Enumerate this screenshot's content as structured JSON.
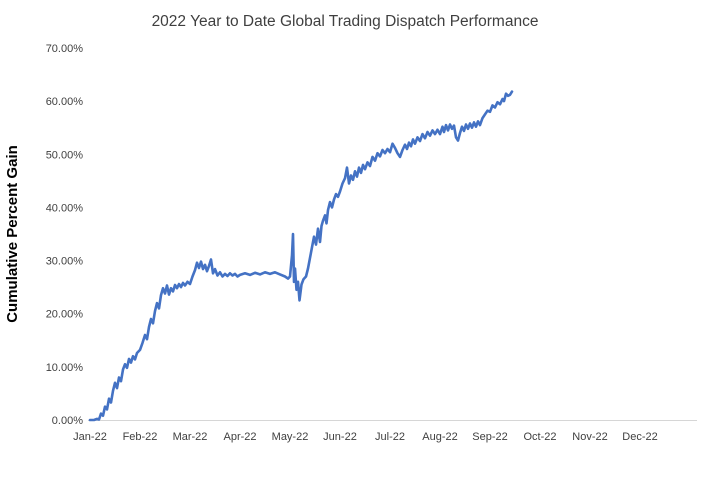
{
  "chart_data": {
    "type": "line",
    "title": "2022 Year to Date Global Trading Dispatch Performance",
    "xlabel": "",
    "ylabel": "Cumulative Percent Gain",
    "legend": "none",
    "grid": false,
    "line_color": "#4472C4",
    "axis_line_color": "#d6d6d6",
    "ylim": [
      0,
      70
    ],
    "y_tick_values": [
      0,
      10,
      20,
      30,
      40,
      50,
      60,
      70
    ],
    "y_tick_labels": [
      "0.00%",
      "10.00%",
      "20.00%",
      "30.00%",
      "40.00%",
      "50.00%",
      "60.00%",
      "70.00%"
    ],
    "x_tick_labels": [
      "Jan-22",
      "Feb-22",
      "Mar-22",
      "Apr-22",
      "May-22",
      "Jun-22",
      "Jul-22",
      "Aug-22",
      "Sep-22",
      "Oct-22",
      "Nov-22",
      "Dec-22"
    ],
    "x_unit": "months after Jan-22 tick",
    "series": [
      {
        "name": "Cumulative Percent Gain",
        "points": [
          [
            0.0,
            0.0
          ],
          [
            0.08,
            0.0
          ],
          [
            0.14,
            0.2
          ],
          [
            0.18,
            0.1
          ],
          [
            0.22,
            1.2
          ],
          [
            0.26,
            0.8
          ],
          [
            0.3,
            2.5
          ],
          [
            0.34,
            2.0
          ],
          [
            0.38,
            4.0
          ],
          [
            0.42,
            3.3
          ],
          [
            0.46,
            5.5
          ],
          [
            0.5,
            7.0
          ],
          [
            0.54,
            6.0
          ],
          [
            0.58,
            8.0
          ],
          [
            0.62,
            7.3
          ],
          [
            0.66,
            9.5
          ],
          [
            0.7,
            10.5
          ],
          [
            0.74,
            9.8
          ],
          [
            0.78,
            11.5
          ],
          [
            0.82,
            10.8
          ],
          [
            0.86,
            12.0
          ],
          [
            0.9,
            11.4
          ],
          [
            0.94,
            12.6
          ],
          [
            1.0,
            13.2
          ],
          [
            1.05,
            14.5
          ],
          [
            1.1,
            16.0
          ],
          [
            1.14,
            15.2
          ],
          [
            1.18,
            17.5
          ],
          [
            1.22,
            19.0
          ],
          [
            1.26,
            18.2
          ],
          [
            1.3,
            20.5
          ],
          [
            1.34,
            22.0
          ],
          [
            1.38,
            21.0
          ],
          [
            1.42,
            23.5
          ],
          [
            1.46,
            24.8
          ],
          [
            1.5,
            23.8
          ],
          [
            1.54,
            25.3
          ],
          [
            1.58,
            23.6
          ],
          [
            1.62,
            24.8
          ],
          [
            1.66,
            24.2
          ],
          [
            1.7,
            25.4
          ],
          [
            1.74,
            24.8
          ],
          [
            1.78,
            25.6
          ],
          [
            1.82,
            25.0
          ],
          [
            1.86,
            25.8
          ],
          [
            1.9,
            25.3
          ],
          [
            1.95,
            26.0
          ],
          [
            2.0,
            25.6
          ],
          [
            2.05,
            27.0
          ],
          [
            2.1,
            28.2
          ],
          [
            2.14,
            29.6
          ],
          [
            2.18,
            28.6
          ],
          [
            2.22,
            29.8
          ],
          [
            2.26,
            28.4
          ],
          [
            2.3,
            29.2
          ],
          [
            2.34,
            28.0
          ],
          [
            2.38,
            29.0
          ],
          [
            2.42,
            30.2
          ],
          [
            2.46,
            27.6
          ],
          [
            2.5,
            28.4
          ],
          [
            2.55,
            27.2
          ],
          [
            2.6,
            27.8
          ],
          [
            2.65,
            27.0
          ],
          [
            2.7,
            27.5
          ],
          [
            2.75,
            27.1
          ],
          [
            2.8,
            27.6
          ],
          [
            2.85,
            27.2
          ],
          [
            2.9,
            27.5
          ],
          [
            2.95,
            27.0
          ],
          [
            3.0,
            27.3
          ],
          [
            3.1,
            27.6
          ],
          [
            3.2,
            27.3
          ],
          [
            3.3,
            27.7
          ],
          [
            3.4,
            27.4
          ],
          [
            3.5,
            27.8
          ],
          [
            3.6,
            27.5
          ],
          [
            3.7,
            27.8
          ],
          [
            3.8,
            27.4
          ],
          [
            3.9,
            27.0
          ],
          [
            3.96,
            26.6
          ],
          [
            4.0,
            27.0
          ],
          [
            4.04,
            31.0
          ],
          [
            4.06,
            35.0
          ],
          [
            4.08,
            26.0
          ],
          [
            4.1,
            28.5
          ],
          [
            4.13,
            24.5
          ],
          [
            4.16,
            26.0
          ],
          [
            4.19,
            22.5
          ],
          [
            4.23,
            25.5
          ],
          [
            4.27,
            26.5
          ],
          [
            4.32,
            27.0
          ],
          [
            4.36,
            28.5
          ],
          [
            4.4,
            30.5
          ],
          [
            4.44,
            32.5
          ],
          [
            4.48,
            34.5
          ],
          [
            4.52,
            33.0
          ],
          [
            4.56,
            36.0
          ],
          [
            4.6,
            33.5
          ],
          [
            4.63,
            36.5
          ],
          [
            4.66,
            37.5
          ],
          [
            4.7,
            38.5
          ],
          [
            4.73,
            37.0
          ],
          [
            4.76,
            39.5
          ],
          [
            4.8,
            41.0
          ],
          [
            4.84,
            40.0
          ],
          [
            4.88,
            41.5
          ],
          [
            4.92,
            42.5
          ],
          [
            4.96,
            42.0
          ],
          [
            5.0,
            43.0
          ],
          [
            5.05,
            44.5
          ],
          [
            5.1,
            45.5
          ],
          [
            5.14,
            47.5
          ],
          [
            5.18,
            44.5
          ],
          [
            5.22,
            46.0
          ],
          [
            5.26,
            45.2
          ],
          [
            5.3,
            46.8
          ],
          [
            5.34,
            45.8
          ],
          [
            5.38,
            47.5
          ],
          [
            5.42,
            46.5
          ],
          [
            5.46,
            48.0
          ],
          [
            5.5,
            47.2
          ],
          [
            5.55,
            48.5
          ],
          [
            5.6,
            47.8
          ],
          [
            5.65,
            49.5
          ],
          [
            5.7,
            48.8
          ],
          [
            5.75,
            50.2
          ],
          [
            5.8,
            49.6
          ],
          [
            5.85,
            50.8
          ],
          [
            5.9,
            50.2
          ],
          [
            5.95,
            51.0
          ],
          [
            6.0,
            50.4
          ],
          [
            6.05,
            52.0
          ],
          [
            6.1,
            51.2
          ],
          [
            6.15,
            50.2
          ],
          [
            6.2,
            49.5
          ],
          [
            6.25,
            50.8
          ],
          [
            6.3,
            51.8
          ],
          [
            6.34,
            51.0
          ],
          [
            6.38,
            52.2
          ],
          [
            6.42,
            51.5
          ],
          [
            6.46,
            52.8
          ],
          [
            6.5,
            52.0
          ],
          [
            6.55,
            53.2
          ],
          [
            6.6,
            52.5
          ],
          [
            6.65,
            53.8
          ],
          [
            6.7,
            53.0
          ],
          [
            6.75,
            54.2
          ],
          [
            6.8,
            53.5
          ],
          [
            6.85,
            54.5
          ],
          [
            6.9,
            53.8
          ],
          [
            6.95,
            54.6
          ],
          [
            7.0,
            53.8
          ],
          [
            7.05,
            55.2
          ],
          [
            7.08,
            54.2
          ],
          [
            7.12,
            55.5
          ],
          [
            7.16,
            54.5
          ],
          [
            7.2,
            55.6
          ],
          [
            7.24,
            54.8
          ],
          [
            7.28,
            55.4
          ],
          [
            7.32,
            53.2
          ],
          [
            7.36,
            52.6
          ],
          [
            7.4,
            54.0
          ],
          [
            7.44,
            55.2
          ],
          [
            7.48,
            54.4
          ],
          [
            7.52,
            55.6
          ],
          [
            7.56,
            54.8
          ],
          [
            7.6,
            55.8
          ],
          [
            7.64,
            55.0
          ],
          [
            7.68,
            56.0
          ],
          [
            7.72,
            55.2
          ],
          [
            7.76,
            56.2
          ],
          [
            7.8,
            55.5
          ],
          [
            7.85,
            56.8
          ],
          [
            7.9,
            57.5
          ],
          [
            7.95,
            58.2
          ],
          [
            8.0,
            58.0
          ],
          [
            8.05,
            59.2
          ],
          [
            8.1,
            58.8
          ],
          [
            8.15,
            59.8
          ],
          [
            8.2,
            59.4
          ],
          [
            8.25,
            60.4
          ],
          [
            8.28,
            60.0
          ],
          [
            8.32,
            61.4
          ],
          [
            8.36,
            61.0
          ],
          [
            8.4,
            61.2
          ],
          [
            8.44,
            61.8
          ]
        ]
      }
    ]
  }
}
